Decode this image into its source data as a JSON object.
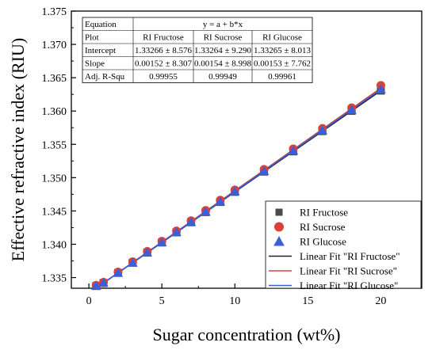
{
  "chart_data": {
    "type": "scatter",
    "xlabel": "Sugar concentration (wt%)",
    "ylabel": "Effective refractive index (RIU)",
    "xlim": [
      -1.2,
      22.8
    ],
    "ylim": [
      1.3334,
      1.375
    ],
    "xticks": [
      0,
      5,
      10,
      15,
      20
    ],
    "yticks": [
      "1.335",
      "1.340",
      "1.345",
      "1.350",
      "1.355",
      "1.360",
      "1.365",
      "1.370",
      "1.375"
    ],
    "grid": false,
    "legend_position": "bottom-right",
    "x": [
      0.5,
      1,
      2,
      3,
      4,
      5,
      6,
      7,
      8,
      9,
      10,
      12,
      14,
      16,
      18,
      20
    ],
    "series": [
      {
        "name": "RI Fructose",
        "marker": "square",
        "color": "#4a4a4a",
        "values": [
          1.33373,
          1.33418,
          1.3357,
          1.33722,
          1.33874,
          1.34026,
          1.34178,
          1.3433,
          1.34482,
          1.34634,
          1.34786,
          1.3509,
          1.35394,
          1.35698,
          1.36002,
          1.36306
        ]
      },
      {
        "name": "RI Sucrose",
        "marker": "circle",
        "color": "#d9413a",
        "values": [
          1.33384,
          1.3343,
          1.33584,
          1.33738,
          1.33892,
          1.34046,
          1.342,
          1.34354,
          1.34508,
          1.34662,
          1.34816,
          1.35124,
          1.35432,
          1.3574,
          1.36048,
          1.36384
        ]
      },
      {
        "name": "RI Glucose",
        "marker": "triangle",
        "color": "#3a5fd9",
        "values": [
          1.33376,
          1.33423,
          1.33571,
          1.33724,
          1.33877,
          1.3403,
          1.34183,
          1.34336,
          1.34489,
          1.34642,
          1.34795,
          1.35101,
          1.35407,
          1.35713,
          1.36019,
          1.36325
        ]
      }
    ],
    "fits": [
      {
        "name": "Linear Fit \"RI Fructose\"",
        "color": "#222222",
        "intercept": 1.33266,
        "slope": 0.00152
      },
      {
        "name": "Linear Fit \"RI Sucrose\"",
        "color": "#d9413a",
        "intercept": 1.33264,
        "slope": 0.00154
      },
      {
        "name": "Linear Fit \"RI Glucose\"",
        "color": "#3a5fd9",
        "intercept": 1.33265,
        "slope": 0.00153
      }
    ],
    "table": {
      "rows": [
        [
          "Equation",
          "y = a + b*x"
        ],
        [
          "Plot",
          "RI Fructose",
          "RI Sucrose",
          "RI Glucose"
        ],
        [
          "Intercept",
          "1.33266 ± 8.576",
          "1.33264 ± 9.290",
          "1.33265 ± 8.013"
        ],
        [
          "Slope",
          "0.00152 ± 8.307",
          "0.00154 ± 8.998",
          "0.00153 ± 7.762"
        ],
        [
          "Adj. R-Squ",
          "0.99955",
          "0.99949",
          "0.99961"
        ]
      ]
    }
  }
}
